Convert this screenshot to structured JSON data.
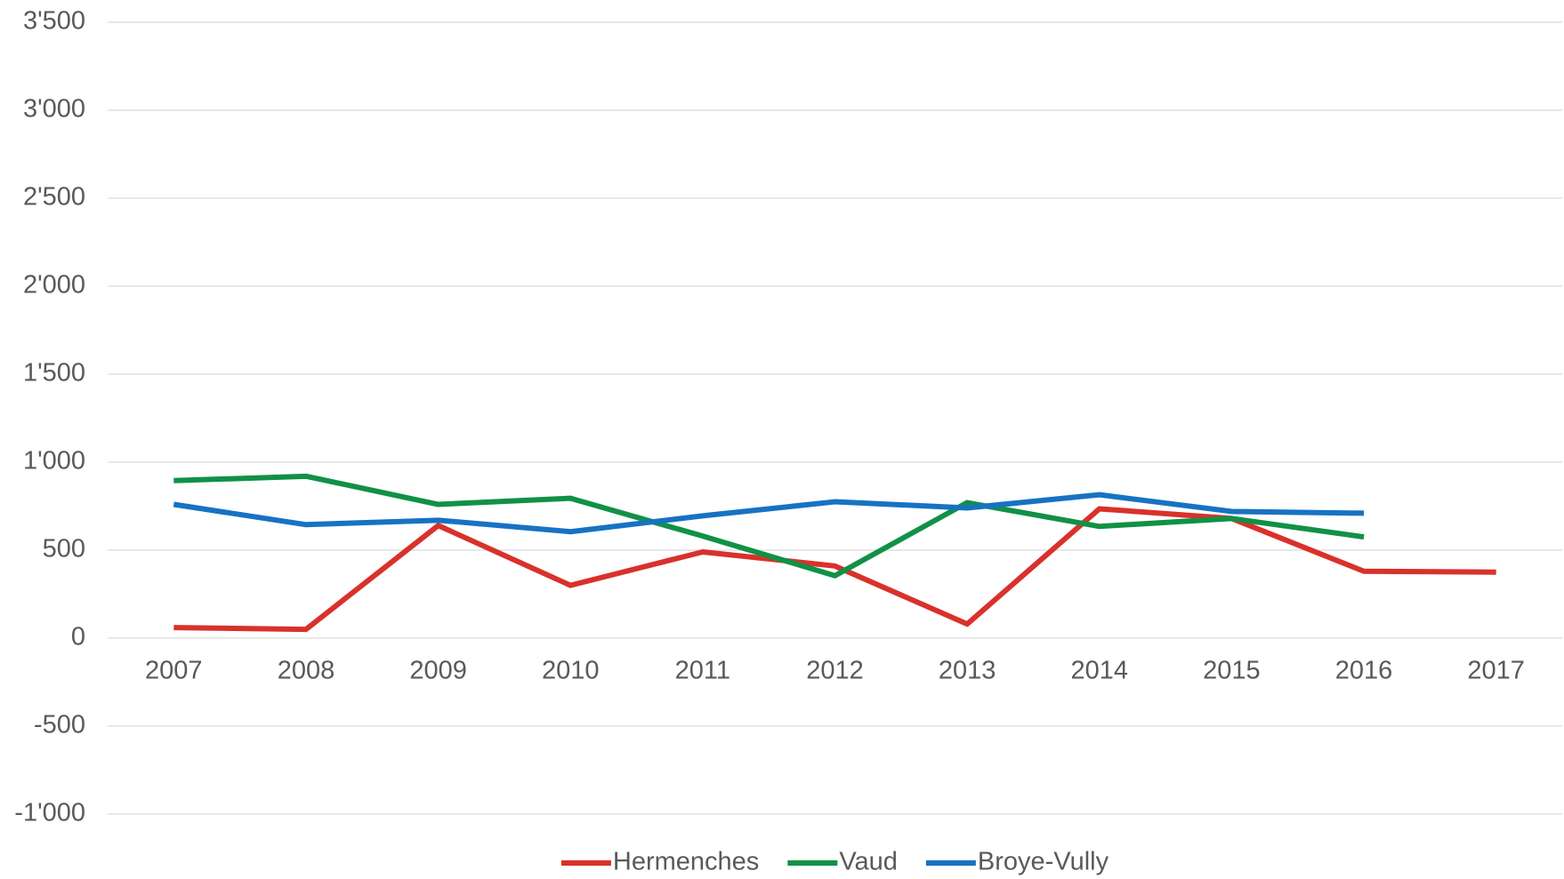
{
  "chart_data": {
    "type": "line",
    "categories": [
      "2007",
      "2008",
      "2009",
      "2010",
      "2011",
      "2012",
      "2013",
      "2014",
      "2015",
      "2016",
      "2017"
    ],
    "series": [
      {
        "name": "Hermenches",
        "color": "#d9312b",
        "values": [
          60,
          50,
          640,
          300,
          490,
          410,
          80,
          735,
          680,
          380,
          375
        ]
      },
      {
        "name": "Vaud",
        "color": "#119146",
        "values": [
          895,
          920,
          760,
          795,
          580,
          355,
          770,
          635,
          680,
          575,
          null
        ]
      },
      {
        "name": "Broye-Vully",
        "color": "#1673c2",
        "values": [
          760,
          645,
          670,
          605,
          695,
          775,
          740,
          815,
          720,
          710,
          null
        ]
      }
    ],
    "ylim": [
      -1000,
      3500
    ],
    "yticks": [
      {
        "value": -1000,
        "label": "-1'000"
      },
      -500,
      0,
      500,
      {
        "value": 1000,
        "label": "1'000"
      },
      {
        "value": 1500,
        "label": "1'500"
      },
      {
        "value": 2000,
        "label": "2'000"
      },
      {
        "value": 2500,
        "label": "2'500"
      },
      {
        "value": 3000,
        "label": "3'000"
      },
      {
        "value": 3500,
        "label": "3'500"
      }
    ],
    "grid": true,
    "legend": "bottom"
  }
}
